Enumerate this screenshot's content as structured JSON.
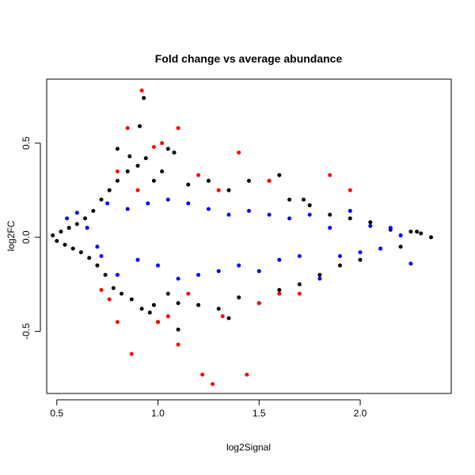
{
  "chart_data": {
    "type": "scatter",
    "title": "Fold change vs average abundance",
    "xlabel": "log2Signal",
    "ylabel": "log2FC",
    "xlim": [
      0.45,
      2.45
    ],
    "ylim": [
      -0.83,
      0.84
    ],
    "x_ticks": [
      "0.5",
      "1.0",
      "1.5",
      "2.0"
    ],
    "x_tick_values": [
      0.5,
      1.0,
      1.5,
      2.0
    ],
    "y_ticks": [
      "-0.5",
      "0.0",
      "0.5"
    ],
    "y_tick_values": [
      -0.5,
      0.0,
      0.5
    ],
    "grid": false,
    "legend": "none",
    "marker": "filled circle",
    "colors": {
      "black": "#000000",
      "blue": "#0000ff",
      "red": "#ff0000"
    },
    "series": [
      {
        "color": "black",
        "points": [
          [
            0.48,
            0.01
          ],
          [
            0.5,
            -0.02
          ],
          [
            0.52,
            0.03
          ],
          [
            0.54,
            -0.04
          ],
          [
            0.56,
            0.05
          ],
          [
            0.58,
            -0.06
          ],
          [
            0.6,
            0.07
          ],
          [
            0.62,
            -0.08
          ],
          [
            0.64,
            0.1
          ],
          [
            0.66,
            -0.11
          ],
          [
            0.68,
            0.14
          ],
          [
            0.7,
            -0.15
          ],
          [
            0.72,
            0.2
          ],
          [
            0.74,
            -0.2
          ],
          [
            0.76,
            0.25
          ],
          [
            0.78,
            -0.27
          ],
          [
            0.8,
            0.3
          ],
          [
            0.82,
            -0.3
          ],
          [
            0.85,
            0.35
          ],
          [
            0.87,
            -0.33
          ],
          [
            0.9,
            0.38
          ],
          [
            0.92,
            -0.38
          ],
          [
            0.94,
            0.42
          ],
          [
            0.96,
            -0.4
          ],
          [
            0.98,
            0.3
          ],
          [
            1.0,
            -0.45
          ],
          [
            1.02,
            0.35
          ],
          [
            1.05,
            -0.3
          ],
          [
            1.08,
            0.45
          ],
          [
            1.1,
            -0.35
          ],
          [
            1.15,
            0.28
          ],
          [
            1.2,
            -0.36
          ],
          [
            1.25,
            0.3
          ],
          [
            1.3,
            -0.38
          ],
          [
            1.35,
            0.25
          ],
          [
            1.4,
            -0.32
          ],
          [
            1.45,
            0.3
          ],
          [
            1.5,
            -0.35
          ],
          [
            1.55,
            0.3
          ],
          [
            1.6,
            -0.28
          ],
          [
            1.65,
            0.2
          ],
          [
            1.7,
            -0.25
          ],
          [
            1.75,
            0.17
          ],
          [
            1.8,
            -0.2
          ],
          [
            1.85,
            0.12
          ],
          [
            1.9,
            -0.15
          ],
          [
            1.95,
            0.1
          ],
          [
            2.0,
            -0.12
          ],
          [
            2.05,
            0.08
          ],
          [
            2.1,
            -0.06
          ],
          [
            2.15,
            0.04
          ],
          [
            2.2,
            -0.05
          ],
          [
            2.25,
            0.03
          ],
          [
            2.3,
            0.02
          ],
          [
            2.35,
            0.0
          ],
          [
            0.93,
            0.74
          ],
          [
            0.91,
            0.59
          ],
          [
            0.8,
            0.47
          ],
          [
            0.86,
            0.43
          ],
          [
            1.05,
            0.47
          ],
          [
            0.98,
            -0.36
          ],
          [
            1.1,
            -0.49
          ],
          [
            1.35,
            -0.43
          ],
          [
            1.6,
            0.33
          ],
          [
            1.72,
            0.2
          ],
          [
            2.28,
            0.03
          ]
        ]
      },
      {
        "color": "blue",
        "points": [
          [
            0.55,
            0.1
          ],
          [
            0.6,
            0.13
          ],
          [
            0.65,
            0.05
          ],
          [
            0.7,
            -0.05
          ],
          [
            0.75,
            0.18
          ],
          [
            0.8,
            -0.2
          ],
          [
            0.85,
            0.15
          ],
          [
            0.9,
            -0.12
          ],
          [
            0.95,
            0.18
          ],
          [
            1.0,
            -0.15
          ],
          [
            1.05,
            0.2
          ],
          [
            1.1,
            -0.22
          ],
          [
            1.15,
            0.18
          ],
          [
            1.2,
            -0.2
          ],
          [
            1.25,
            0.15
          ],
          [
            1.3,
            -0.18
          ],
          [
            1.35,
            0.12
          ],
          [
            1.4,
            -0.15
          ],
          [
            1.45,
            0.14
          ],
          [
            1.5,
            -0.18
          ],
          [
            1.55,
            0.12
          ],
          [
            1.6,
            -0.12
          ],
          [
            1.65,
            0.1
          ],
          [
            1.7,
            -0.1
          ],
          [
            1.75,
            0.12
          ],
          [
            1.8,
            -0.22
          ],
          [
            1.85,
            0.05
          ],
          [
            1.9,
            -0.1
          ],
          [
            1.95,
            0.14
          ],
          [
            2.0,
            -0.08
          ],
          [
            2.05,
            0.06
          ],
          [
            2.1,
            -0.06
          ],
          [
            2.15,
            0.05
          ],
          [
            2.2,
            0.01
          ],
          [
            2.25,
            -0.14
          ],
          [
            0.72,
            -0.1
          ]
        ]
      },
      {
        "color": "red",
        "points": [
          [
            0.92,
            0.78
          ],
          [
            0.85,
            0.58
          ],
          [
            1.1,
            0.58
          ],
          [
            0.98,
            0.48
          ],
          [
            1.02,
            0.5
          ],
          [
            0.8,
            0.35
          ],
          [
            1.4,
            0.45
          ],
          [
            1.55,
            0.3
          ],
          [
            1.85,
            0.33
          ],
          [
            1.95,
            0.25
          ],
          [
            0.76,
            -0.33
          ],
          [
            0.8,
            -0.45
          ],
          [
            0.87,
            -0.62
          ],
          [
            1.0,
            -0.45
          ],
          [
            1.05,
            -0.42
          ],
          [
            1.1,
            -0.57
          ],
          [
            1.22,
            -0.73
          ],
          [
            1.27,
            -0.78
          ],
          [
            1.44,
            -0.73
          ],
          [
            1.32,
            -0.42
          ],
          [
            1.5,
            -0.35
          ],
          [
            1.6,
            -0.3
          ],
          [
            1.7,
            -0.3
          ],
          [
            0.9,
            0.25
          ],
          [
            1.3,
            0.25
          ],
          [
            1.2,
            0.33
          ],
          [
            0.72,
            -0.28
          ],
          [
            1.15,
            -0.3
          ]
        ]
      }
    ]
  }
}
